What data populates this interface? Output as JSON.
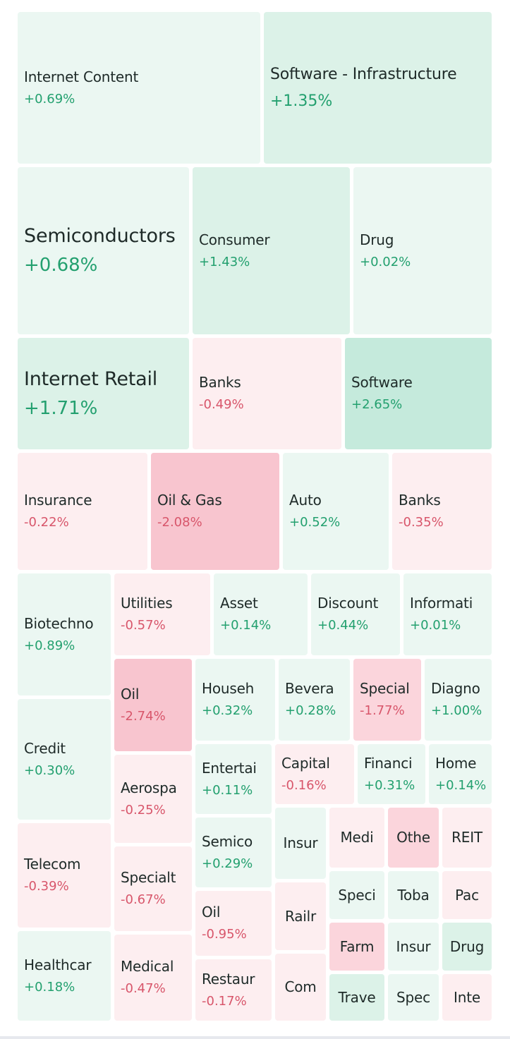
{
  "colors": {
    "pos_1": "#ebf7f2",
    "pos_2": "#dcf2e8",
    "pos_3": "#c5eadc",
    "neg_1": "#fdeef0",
    "neg_2": "#fbd5dc",
    "neg_3": "#f8c5cf"
  },
  "treemap": {
    "tiles": [
      {
        "name": "Internet Content",
        "change": "+0.69%",
        "sentiment": "pos_1",
        "size": "m"
      },
      {
        "name": "Software - Infrastructure",
        "change": "+1.35%",
        "sentiment": "pos_2",
        "size": "l"
      },
      {
        "name": "Semiconductors",
        "change": "+0.68%",
        "sentiment": "pos_1",
        "size": "xl"
      },
      {
        "name": "Consumer",
        "change": "+1.43%",
        "sentiment": "pos_2",
        "size": "m"
      },
      {
        "name": "Drug",
        "change": "+0.02%",
        "sentiment": "pos_1",
        "size": "m"
      },
      {
        "name": "Internet Retail",
        "change": "+1.71%",
        "sentiment": "pos_2",
        "size": "xl"
      },
      {
        "name": "Banks",
        "change": "-0.49%",
        "sentiment": "neg_1",
        "size": "m"
      },
      {
        "name": "Software",
        "change": "+2.65%",
        "sentiment": "pos_3",
        "size": "m"
      },
      {
        "name": "Insurance",
        "change": "-0.22%",
        "sentiment": "neg_1",
        "size": "m"
      },
      {
        "name": "Oil & Gas",
        "change": "-2.08%",
        "sentiment": "neg_3",
        "size": "m"
      },
      {
        "name": "Auto",
        "change": "+0.52%",
        "sentiment": "pos_1",
        "size": "m"
      },
      {
        "name": "Banks",
        "change": "-0.35%",
        "sentiment": "neg_1",
        "size": "m"
      },
      {
        "name": "Biotechno",
        "change": "+0.89%",
        "sentiment": "pos_1",
        "size": "m"
      },
      {
        "name": "Utilities",
        "change": "-0.57%",
        "sentiment": "neg_1",
        "size": "m"
      },
      {
        "name": "Asset",
        "change": "+0.14%",
        "sentiment": "pos_1",
        "size": "m"
      },
      {
        "name": "Discount",
        "change": "+0.44%",
        "sentiment": "pos_1",
        "size": "m"
      },
      {
        "name": "Informati",
        "change": "+0.01%",
        "sentiment": "pos_1",
        "size": "m"
      },
      {
        "name": "Credit",
        "change": "+0.30%",
        "sentiment": "pos_1",
        "size": "m"
      },
      {
        "name": "Oil",
        "change": "-2.74%",
        "sentiment": "neg_3",
        "size": "m"
      },
      {
        "name": "Househ",
        "change": "+0.32%",
        "sentiment": "pos_1",
        "size": "m"
      },
      {
        "name": "Bevera",
        "change": "+0.28%",
        "sentiment": "pos_1",
        "size": "m"
      },
      {
        "name": "Special",
        "change": "-1.77%",
        "sentiment": "neg_2",
        "size": "m"
      },
      {
        "name": "Diagno",
        "change": "+1.00%",
        "sentiment": "pos_1",
        "size": "m"
      },
      {
        "name": "Entertai",
        "change": "+0.11%",
        "sentiment": "pos_1",
        "size": "m"
      },
      {
        "name": "Capital",
        "change": "-0.16%",
        "sentiment": "neg_1",
        "size": "m"
      },
      {
        "name": "Financi",
        "change": "+0.31%",
        "sentiment": "pos_1",
        "size": "m"
      },
      {
        "name": "Home",
        "change": "+0.14%",
        "sentiment": "pos_1",
        "size": "m"
      },
      {
        "name": "Aerospa",
        "change": "-0.25%",
        "sentiment": "neg_1",
        "size": "m"
      },
      {
        "name": "Telecom",
        "change": "-0.39%",
        "sentiment": "neg_1",
        "size": "m"
      },
      {
        "name": "Semico",
        "change": "+0.29%",
        "sentiment": "pos_1",
        "size": "m"
      },
      {
        "name": "Insur",
        "change": "",
        "sentiment": "pos_1",
        "size": "s"
      },
      {
        "name": "Medi",
        "change": "",
        "sentiment": "neg_1",
        "size": "s"
      },
      {
        "name": "Othe",
        "change": "",
        "sentiment": "neg_2",
        "size": "s"
      },
      {
        "name": "REIT",
        "change": "",
        "sentiment": "neg_1",
        "size": "s"
      },
      {
        "name": "Specialt",
        "change": "-0.67%",
        "sentiment": "neg_1",
        "size": "m"
      },
      {
        "name": "Railr",
        "change": "",
        "sentiment": "neg_1",
        "size": "s"
      },
      {
        "name": "Speci",
        "change": "",
        "sentiment": "pos_1",
        "size": "s"
      },
      {
        "name": "Toba",
        "change": "",
        "sentiment": "pos_1",
        "size": "s"
      },
      {
        "name": "Pac",
        "change": "",
        "sentiment": "neg_1",
        "size": "s"
      },
      {
        "name": "Oil",
        "change": "-0.95%",
        "sentiment": "neg_1",
        "size": "m"
      },
      {
        "name": "Farm",
        "change": "",
        "sentiment": "neg_2",
        "size": "s"
      },
      {
        "name": "Insur",
        "change": "",
        "sentiment": "pos_1",
        "size": "s"
      },
      {
        "name": "Drug",
        "change": "",
        "sentiment": "pos_2",
        "size": "s"
      },
      {
        "name": "Healthcar",
        "change": "+0.18%",
        "sentiment": "pos_1",
        "size": "m"
      },
      {
        "name": "Medical",
        "change": "-0.47%",
        "sentiment": "neg_1",
        "size": "m"
      },
      {
        "name": "Restaur",
        "change": "-0.17%",
        "sentiment": "neg_1",
        "size": "m"
      },
      {
        "name": "Com",
        "change": "",
        "sentiment": "neg_1",
        "size": "s"
      },
      {
        "name": "Trave",
        "change": "",
        "sentiment": "pos_2",
        "size": "s"
      },
      {
        "name": "Spec",
        "change": "",
        "sentiment": "pos_1",
        "size": "s"
      },
      {
        "name": "Inte",
        "change": "",
        "sentiment": "neg_1",
        "size": "s"
      }
    ]
  }
}
